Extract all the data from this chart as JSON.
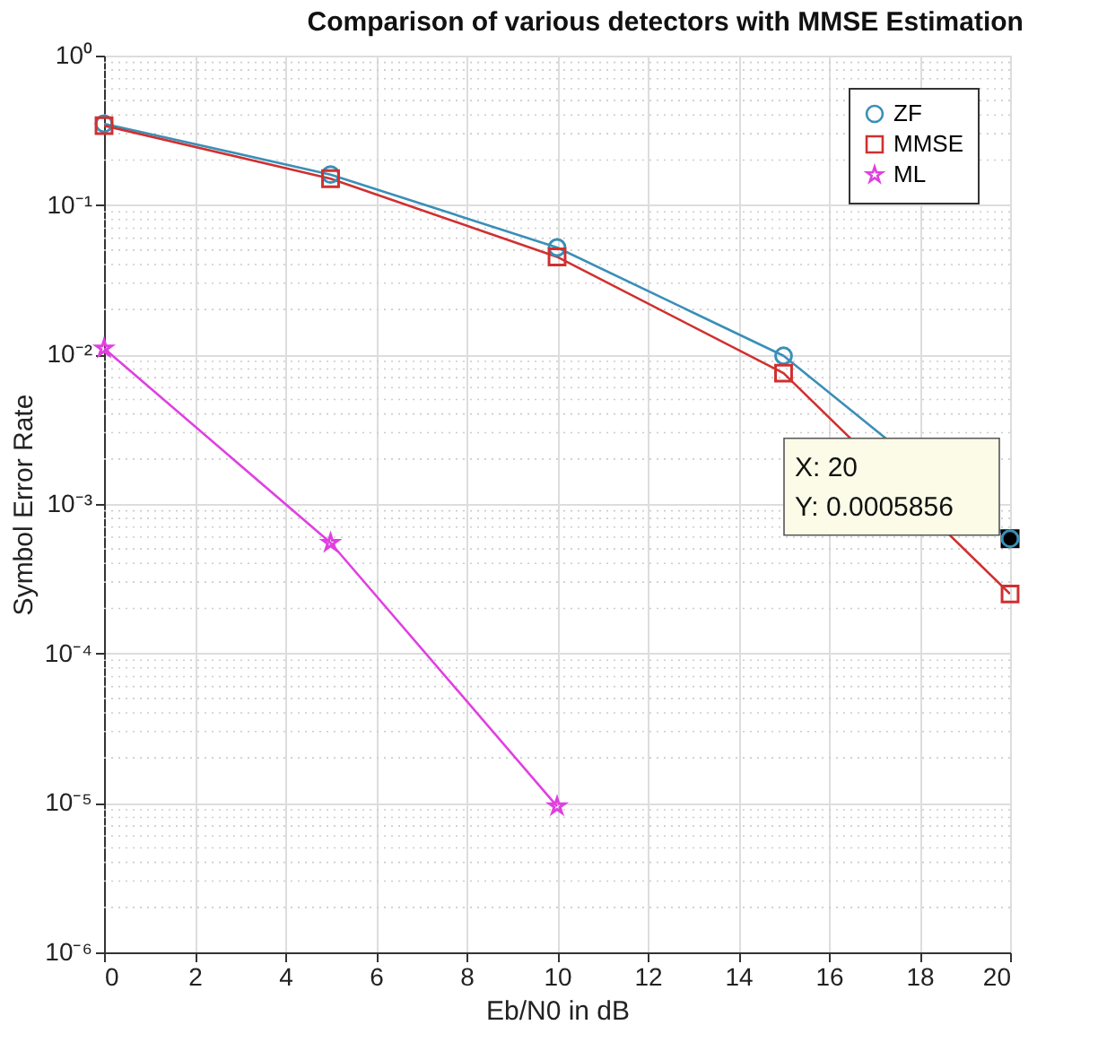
{
  "chart_data": {
    "type": "line",
    "title": "Comparison of various detectors with MMSE Estimation",
    "xlabel": "Eb/N0 in dB",
    "ylabel": "Symbol Error Rate",
    "x": [
      0,
      5,
      10,
      15,
      20
    ],
    "series": [
      {
        "name": "ZF",
        "color": "#3a8fb7",
        "marker": "circle",
        "values": [
          0.35,
          0.16,
          0.052,
          0.0098,
          0.0005856
        ]
      },
      {
        "name": "MMSE",
        "color": "#d03030",
        "marker": "square",
        "values": [
          0.34,
          0.15,
          0.045,
          0.0075,
          0.00025
        ]
      },
      {
        "name": "ML",
        "color": "#e040e0",
        "marker": "star",
        "values": [
          0.011,
          0.00055,
          9.5e-06,
          null,
          null
        ]
      }
    ],
    "log": "y",
    "xlim": [
      0,
      20
    ],
    "xticks": [
      0,
      2,
      4,
      6,
      8,
      10,
      12,
      14,
      16,
      18,
      20
    ],
    "ylim": [
      1e-06,
      1
    ],
    "yticks": [
      {
        "value": 1e-06,
        "label": "10⁻⁶"
      },
      {
        "value": 1e-05,
        "label": "10⁻⁵"
      },
      {
        "value": 0.0001,
        "label": "10⁻⁴"
      },
      {
        "value": 0.001,
        "label": "10⁻³"
      },
      {
        "value": 0.01,
        "label": "10⁻²"
      },
      {
        "value": 0.1,
        "label": "10⁻¹"
      },
      {
        "value": 1,
        "label": "10⁰"
      }
    ],
    "grid": true,
    "legend": "top right",
    "line_style": "solid",
    "annotations": [
      {
        "text": "X: 20\nY: 0.0005856",
        "x": 20,
        "y": 0.0005856
      }
    ]
  }
}
